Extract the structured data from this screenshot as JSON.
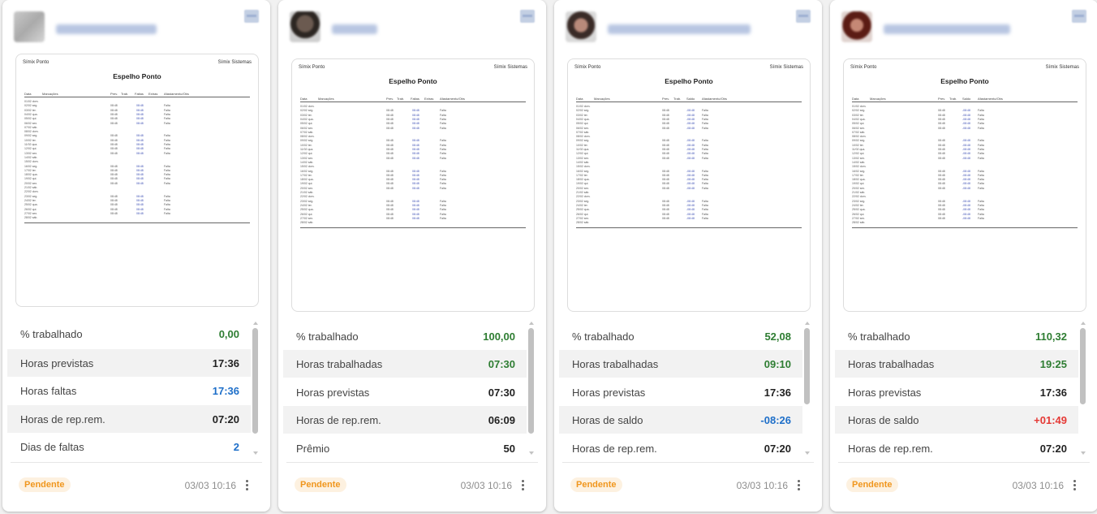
{
  "cards": [
    {
      "doc": {
        "header_left": "Símix Ponto",
        "header_right": "Símix Sistemas",
        "title": "Espelho Ponto",
        "columns": [
          "Data",
          "Marcações",
          "Prev.",
          "Trab.",
          "Faltas",
          "Extras",
          "Afastamento/Obs"
        ]
      },
      "stats": [
        {
          "label": "% trabalhado",
          "value": "0,00",
          "color": "green"
        },
        {
          "label": "Horas previstas",
          "value": "17:36",
          "color": "dark"
        },
        {
          "label": "Horas faltas",
          "value": "17:36",
          "color": "blue"
        },
        {
          "label": "Horas de rep.rem.",
          "value": "07:20",
          "color": "dark"
        },
        {
          "label": "Dias de faltas",
          "value": "2",
          "color": "blue"
        }
      ],
      "status": "Pendente",
      "date": "03/03 10:16"
    },
    {
      "doc": {
        "header_left": "Símix Ponto",
        "header_right": "Símix Sistemas",
        "title": "Espelho Ponto",
        "columns": [
          "Data",
          "Marcações",
          "Prev.",
          "Trab.",
          "Faltas",
          "Extras",
          "Afastamento/Obs"
        ]
      },
      "stats": [
        {
          "label": "% trabalhado",
          "value": "100,00",
          "color": "green"
        },
        {
          "label": "Horas trabalhadas",
          "value": "07:30",
          "color": "green"
        },
        {
          "label": "Horas previstas",
          "value": "07:30",
          "color": "dark"
        },
        {
          "label": "Horas de rep.rem.",
          "value": "06:09",
          "color": "dark"
        },
        {
          "label": "Prêmio",
          "value": "50",
          "color": "dark"
        }
      ],
      "status": "Pendente",
      "date": "03/03 10:16"
    },
    {
      "doc": {
        "header_left": "Símix Ponto",
        "header_right": "Símix Sistemas",
        "title": "Espelho Ponto",
        "columns": [
          "Data",
          "Marcações",
          "Prev.",
          "Trab.",
          "Saldo",
          "Afastamento/Obs"
        ]
      },
      "stats": [
        {
          "label": "% trabalhado",
          "value": "52,08",
          "color": "green"
        },
        {
          "label": "Horas trabalhadas",
          "value": "09:10",
          "color": "green"
        },
        {
          "label": "Horas previstas",
          "value": "17:36",
          "color": "dark"
        },
        {
          "label": "Horas de saldo",
          "value": "-08:26",
          "color": "blue"
        },
        {
          "label": "Horas de rep.rem.",
          "value": "07:20",
          "color": "dark"
        }
      ],
      "status": "Pendente",
      "date": "03/03 10:16"
    },
    {
      "doc": {
        "header_left": "Símix Ponto",
        "header_right": "Símix Sistemas",
        "title": "Espelho Ponto",
        "columns": [
          "Data",
          "Marcações",
          "Prev.",
          "Trab.",
          "Saldo",
          "Afastamento/Obs"
        ]
      },
      "stats": [
        {
          "label": "% trabalhado",
          "value": "110,32",
          "color": "green"
        },
        {
          "label": "Horas trabalhadas",
          "value": "19:25",
          "color": "green"
        },
        {
          "label": "Horas previstas",
          "value": "17:36",
          "color": "dark"
        },
        {
          "label": "Horas de saldo",
          "value": "+01:49",
          "color": "red"
        },
        {
          "label": "Horas de rep.rem.",
          "value": "07:20",
          "color": "dark"
        }
      ],
      "status": "Pendente",
      "date": "03/03 10:16"
    }
  ],
  "colors": {
    "green": "#2e7d32",
    "blue": "#1e6fc9",
    "red": "#e53935",
    "pending": "#f0961d"
  }
}
